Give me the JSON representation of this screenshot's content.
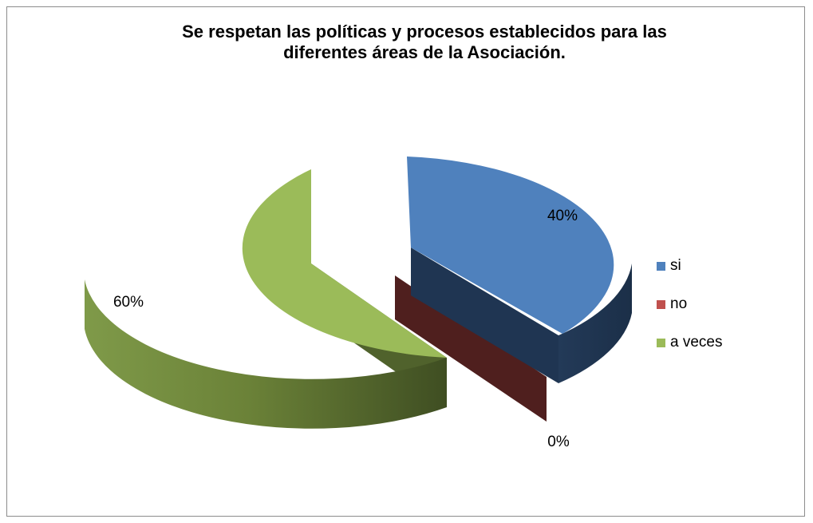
{
  "chart_data": {
    "type": "pie",
    "title_lines": [
      "Se respetan las políticas y procesos establecidos para las",
      "diferentes áreas de la Asociación."
    ],
    "categories": [
      "si",
      "no",
      "a veces"
    ],
    "values": [
      40,
      0,
      60
    ],
    "data_labels": [
      "40%",
      "0%",
      "60%"
    ],
    "colors": [
      "#4f81bd",
      "#c0504d",
      "#9bbb59"
    ],
    "side_colors": [
      "#1f3552",
      "#4f1f1e",
      "#3d4b22"
    ],
    "legend_position": "right",
    "exploded": true,
    "perspective": "3d"
  }
}
